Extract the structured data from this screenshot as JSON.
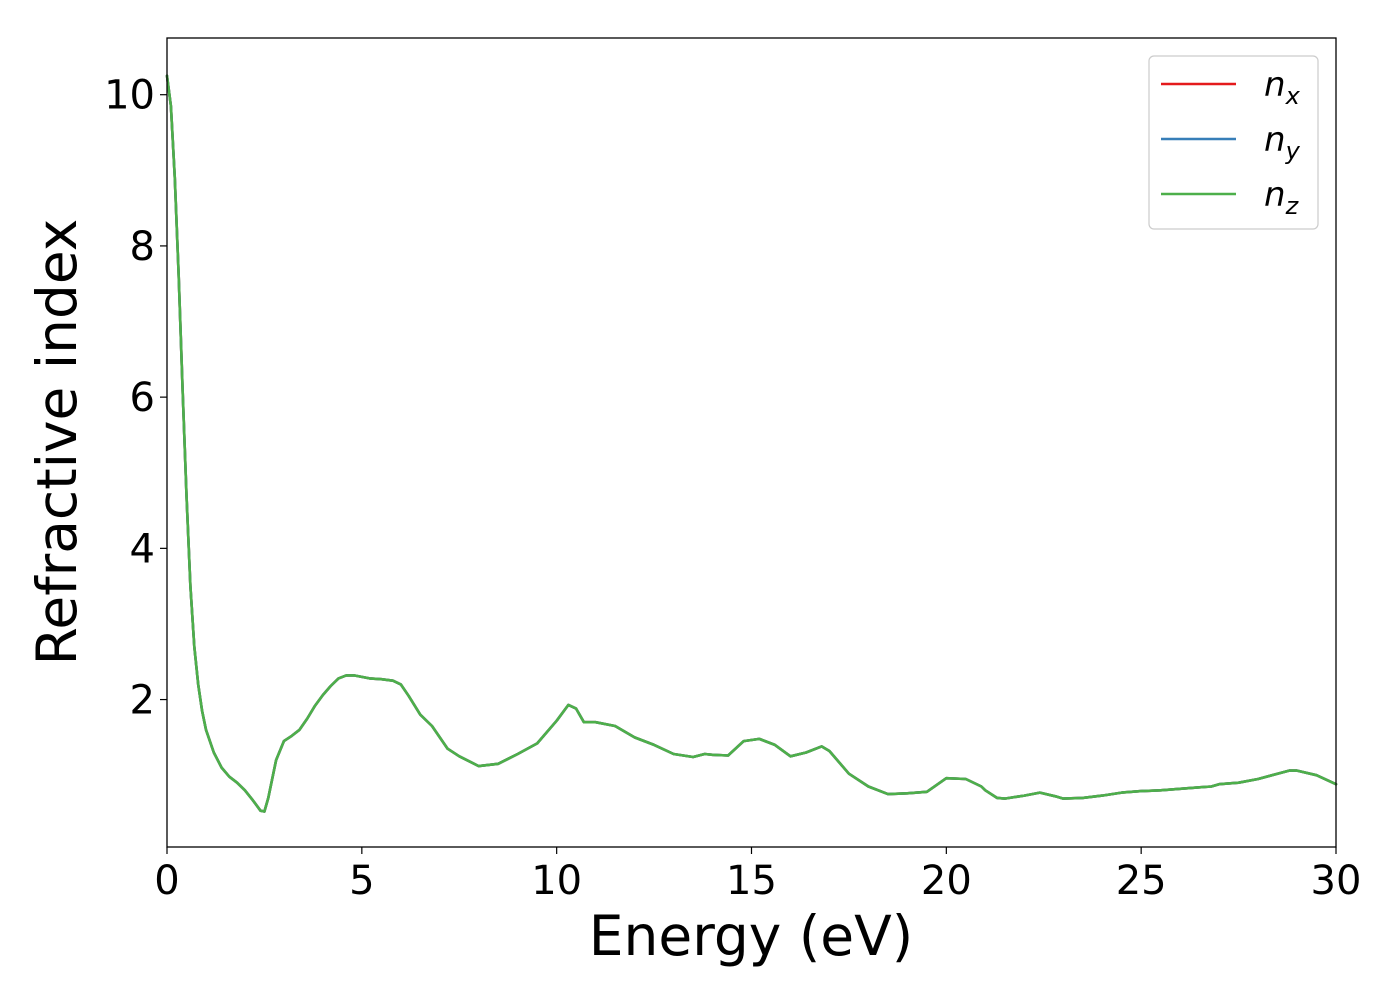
{
  "chart_data": {
    "type": "line",
    "title": "",
    "xlabel": "Energy (eV)",
    "ylabel": "Refractive index",
    "xlim": [
      0,
      30
    ],
    "ylim": [
      0.05,
      10.75
    ],
    "xticks": [
      0,
      5,
      10,
      15,
      20,
      25,
      30
    ],
    "yticks": [
      2,
      4,
      6,
      8,
      10
    ],
    "grid": false,
    "legend_position": "top-right",
    "x": [
      0,
      0.1,
      0.2,
      0.3,
      0.4,
      0.5,
      0.6,
      0.7,
      0.8,
      0.9,
      1.0,
      1.2,
      1.4,
      1.6,
      1.8,
      2.0,
      2.2,
      2.4,
      2.5,
      2.6,
      2.8,
      3.0,
      3.2,
      3.4,
      3.6,
      3.8,
      4.0,
      4.2,
      4.4,
      4.6,
      4.8,
      5.0,
      5.2,
      5.5,
      5.8,
      6.0,
      6.2,
      6.5,
      6.8,
      7.0,
      7.2,
      7.5,
      8.0,
      8.5,
      9.0,
      9.5,
      10.0,
      10.3,
      10.5,
      10.7,
      11.0,
      11.5,
      12.0,
      12.5,
      13.0,
      13.5,
      13.8,
      14.0,
      14.4,
      14.8,
      15.2,
      15.6,
      16.0,
      16.4,
      16.8,
      17.0,
      17.5,
      18.0,
      18.5,
      19.0,
      19.5,
      20.0,
      20.5,
      20.9,
      21.0,
      21.3,
      21.5,
      22.0,
      22.4,
      22.8,
      23.0,
      23.5,
      24.0,
      24.5,
      25.0,
      25.5,
      26.0,
      26.5,
      26.8,
      27.0,
      27.5,
      28.0,
      28.5,
      28.8,
      29.0,
      29.5,
      30.0
    ],
    "series": [
      {
        "name": "n_x",
        "label_base": "n",
        "label_sub": "x",
        "color": "#e41a1c",
        "values": [
          10.25,
          9.85,
          8.9,
          7.6,
          6.1,
          4.7,
          3.5,
          2.7,
          2.2,
          1.85,
          1.6,
          1.3,
          1.1,
          0.98,
          0.9,
          0.8,
          0.67,
          0.53,
          0.52,
          0.7,
          1.2,
          1.45,
          1.52,
          1.6,
          1.75,
          1.92,
          2.06,
          2.18,
          2.28,
          2.32,
          2.32,
          2.3,
          2.28,
          2.27,
          2.25,
          2.2,
          2.05,
          1.8,
          1.65,
          1.5,
          1.35,
          1.25,
          1.12,
          1.15,
          1.28,
          1.42,
          1.72,
          1.93,
          1.88,
          1.7,
          1.7,
          1.65,
          1.5,
          1.4,
          1.28,
          1.24,
          1.28,
          1.27,
          1.26,
          1.45,
          1.48,
          1.4,
          1.25,
          1.3,
          1.38,
          1.32,
          1.02,
          0.85,
          0.75,
          0.76,
          0.78,
          0.96,
          0.95,
          0.85,
          0.8,
          0.7,
          0.69,
          0.73,
          0.77,
          0.72,
          0.69,
          0.7,
          0.73,
          0.77,
          0.79,
          0.8,
          0.82,
          0.84,
          0.85,
          0.88,
          0.9,
          0.95,
          1.02,
          1.06,
          1.06,
          1.0,
          0.88
        ]
      },
      {
        "name": "n_y",
        "label_base": "n",
        "label_sub": "y",
        "color": "#377eb8",
        "values": [
          10.25,
          9.85,
          8.9,
          7.6,
          6.1,
          4.7,
          3.5,
          2.7,
          2.2,
          1.85,
          1.6,
          1.3,
          1.1,
          0.98,
          0.9,
          0.8,
          0.67,
          0.53,
          0.52,
          0.7,
          1.2,
          1.45,
          1.52,
          1.6,
          1.75,
          1.92,
          2.06,
          2.18,
          2.28,
          2.32,
          2.32,
          2.3,
          2.28,
          2.27,
          2.25,
          2.2,
          2.05,
          1.8,
          1.65,
          1.5,
          1.35,
          1.25,
          1.12,
          1.15,
          1.28,
          1.42,
          1.72,
          1.93,
          1.88,
          1.7,
          1.7,
          1.65,
          1.5,
          1.4,
          1.28,
          1.24,
          1.28,
          1.27,
          1.26,
          1.45,
          1.48,
          1.4,
          1.25,
          1.3,
          1.38,
          1.32,
          1.02,
          0.85,
          0.75,
          0.76,
          0.78,
          0.96,
          0.95,
          0.85,
          0.8,
          0.7,
          0.69,
          0.73,
          0.77,
          0.72,
          0.69,
          0.7,
          0.73,
          0.77,
          0.79,
          0.8,
          0.82,
          0.84,
          0.85,
          0.88,
          0.9,
          0.95,
          1.02,
          1.06,
          1.06,
          1.0,
          0.88
        ]
      },
      {
        "name": "n_z",
        "label_base": "n",
        "label_sub": "z",
        "color": "#4daf4a",
        "values": [
          10.25,
          9.85,
          8.9,
          7.6,
          6.1,
          4.7,
          3.5,
          2.7,
          2.2,
          1.85,
          1.6,
          1.3,
          1.1,
          0.98,
          0.9,
          0.8,
          0.67,
          0.53,
          0.52,
          0.7,
          1.2,
          1.45,
          1.52,
          1.6,
          1.75,
          1.92,
          2.06,
          2.18,
          2.28,
          2.32,
          2.32,
          2.3,
          2.28,
          2.27,
          2.25,
          2.2,
          2.05,
          1.8,
          1.65,
          1.5,
          1.35,
          1.25,
          1.12,
          1.15,
          1.28,
          1.42,
          1.72,
          1.93,
          1.88,
          1.7,
          1.7,
          1.65,
          1.5,
          1.4,
          1.28,
          1.24,
          1.28,
          1.27,
          1.26,
          1.45,
          1.48,
          1.4,
          1.25,
          1.3,
          1.38,
          1.32,
          1.02,
          0.85,
          0.75,
          0.76,
          0.78,
          0.96,
          0.95,
          0.85,
          0.8,
          0.7,
          0.69,
          0.73,
          0.77,
          0.72,
          0.69,
          0.7,
          0.73,
          0.77,
          0.79,
          0.8,
          0.82,
          0.84,
          0.85,
          0.88,
          0.9,
          0.95,
          1.02,
          1.06,
          1.06,
          1.0,
          0.88
        ]
      }
    ]
  }
}
